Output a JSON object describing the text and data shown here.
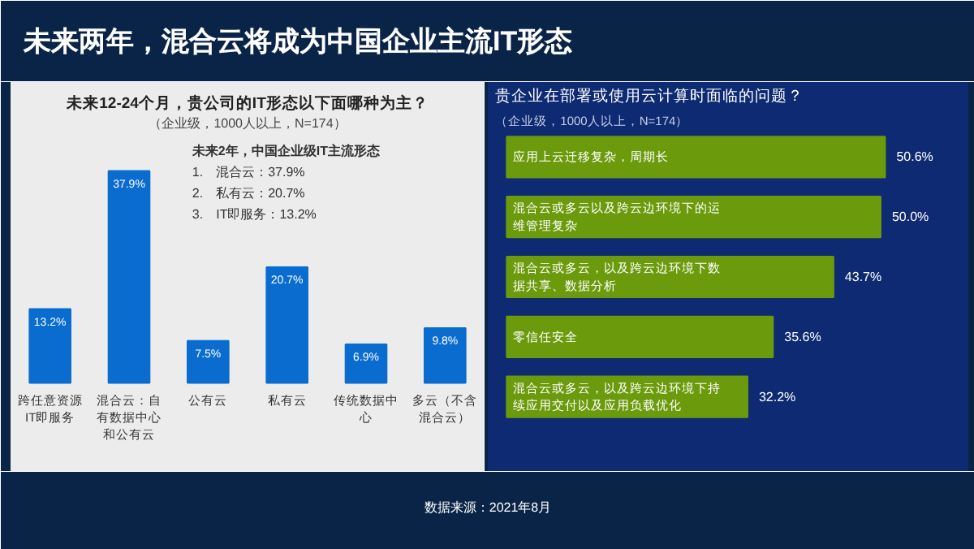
{
  "chart_data": [
    {
      "type": "bar",
      "title": "未来12-24个月，贵公司的IT形态以下面哪种为主？",
      "subtitle": "（企业级，1000人以上，N=174）",
      "categories": [
        "跨任意资源IT即服务",
        "混合云：自有数据中心和公有云",
        "公有云",
        "私有云",
        "传统数据中心",
        "多云（不含混合云）"
      ],
      "values": [
        13.2,
        37.9,
        7.5,
        20.7,
        6.9,
        9.8
      ],
      "value_labels": [
        "13.2%",
        "37.9%",
        "7.5%",
        "20.7%",
        "6.9%",
        "9.8%"
      ],
      "color": "#0a6ccf",
      "annotations": [
        "未来两年，混合云将成为中国企业主流IT形态",
        "未来2年，中国企业级IT主流形态",
        "1.　混合云：37.9%",
        "2.　私有云：20.7%",
        "3.　IT即服务：13.2%"
      ]
    },
    {
      "type": "bar",
      "orientation": "horizontal",
      "title": "贵企业在部署或使用云计算时面临的问题？",
      "subtitle": "（企业级，1000人以上，N=174）",
      "categories": [
        "应用上云迁移复杂，周期长",
        "混合云或多云以及跨云边环境下的运维管理复杂",
        "混合云或多云，以及跨云边环境下数据共享、数据分析",
        "零信任安全",
        "混合云或多云，以及跨云边环境下持续应用交付以及应用负载优化"
      ],
      "values": [
        50.6,
        50.0,
        43.7,
        35.6,
        32.2
      ],
      "value_labels": [
        "50.6%",
        "50.0%",
        "43.7%",
        "35.6%",
        "32.2%"
      ],
      "color": "#6b9a0c",
      "annotations": [
        "数据来源：2021年8月"
      ]
    }
  ]
}
